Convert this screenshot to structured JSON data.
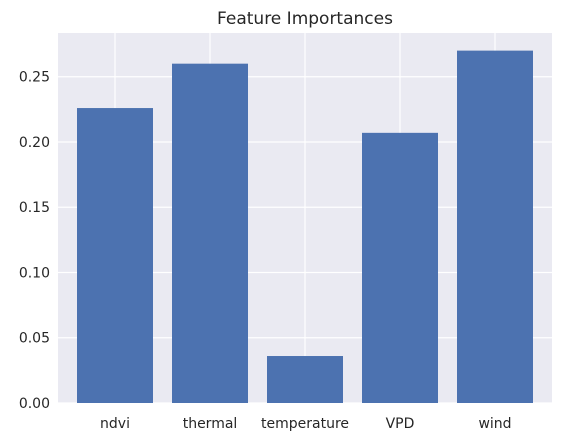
{
  "chart_data": {
    "type": "bar",
    "title": "Feature Importances",
    "xlabel": "",
    "ylabel": "",
    "categories": [
      "ndvi",
      "thermal",
      "temperature",
      "VPD",
      "wind"
    ],
    "values": [
      0.226,
      0.26,
      0.036,
      0.207,
      0.27
    ],
    "ylim": [
      0,
      0.2835
    ],
    "yticks": [
      "0.00",
      "0.05",
      "0.10",
      "0.15",
      "0.20",
      "0.25"
    ],
    "grid": true,
    "legend": "none",
    "colors": {
      "bar": "#4c72b0",
      "plot_background": "#eaeaf2",
      "grid": "#ffffff"
    }
  }
}
